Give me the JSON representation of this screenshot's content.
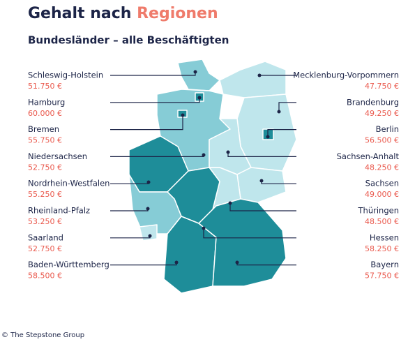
{
  "header": {
    "title_part1": "Gehalt nach",
    "title_part2": "Regionen",
    "subtitle": "Bundesländer – alle Beschäftigten"
  },
  "left_regions": [
    {
      "name": "Schleswig-Holstein",
      "salary": "51.750 €"
    },
    {
      "name": "Hamburg",
      "salary": "60.000 €"
    },
    {
      "name": "Bremen",
      "salary": "55.750 €"
    },
    {
      "name": "Niedersachsen",
      "salary": "52.750 €"
    },
    {
      "name": "Nordrhein-Westfalen",
      "salary": "55.250 €"
    },
    {
      "name": "Rheinland-Pfalz",
      "salary": "53.250 €"
    },
    {
      "name": "Saarland",
      "salary": "52.750 €"
    },
    {
      "name": "Baden-Württemberg",
      "salary": "58.500 €"
    }
  ],
  "right_regions": [
    {
      "name": "Mecklenburg-Vorpommern",
      "salary": "47.750 €"
    },
    {
      "name": "Brandenburg",
      "salary": "49.250 €"
    },
    {
      "name": "Berlin",
      "salary": "56.500 €"
    },
    {
      "name": "Sachsen-Anhalt",
      "salary": "48.250 €"
    },
    {
      "name": "Sachsen",
      "salary": "49.000 €"
    },
    {
      "name": "Thüringen",
      "salary": "48.500 €"
    },
    {
      "name": "Hessen",
      "salary": "58.250 €"
    },
    {
      "name": "Bayern",
      "salary": "57.750 €"
    }
  ],
  "footer": {
    "credit": "© The Stepstone Group"
  }
}
